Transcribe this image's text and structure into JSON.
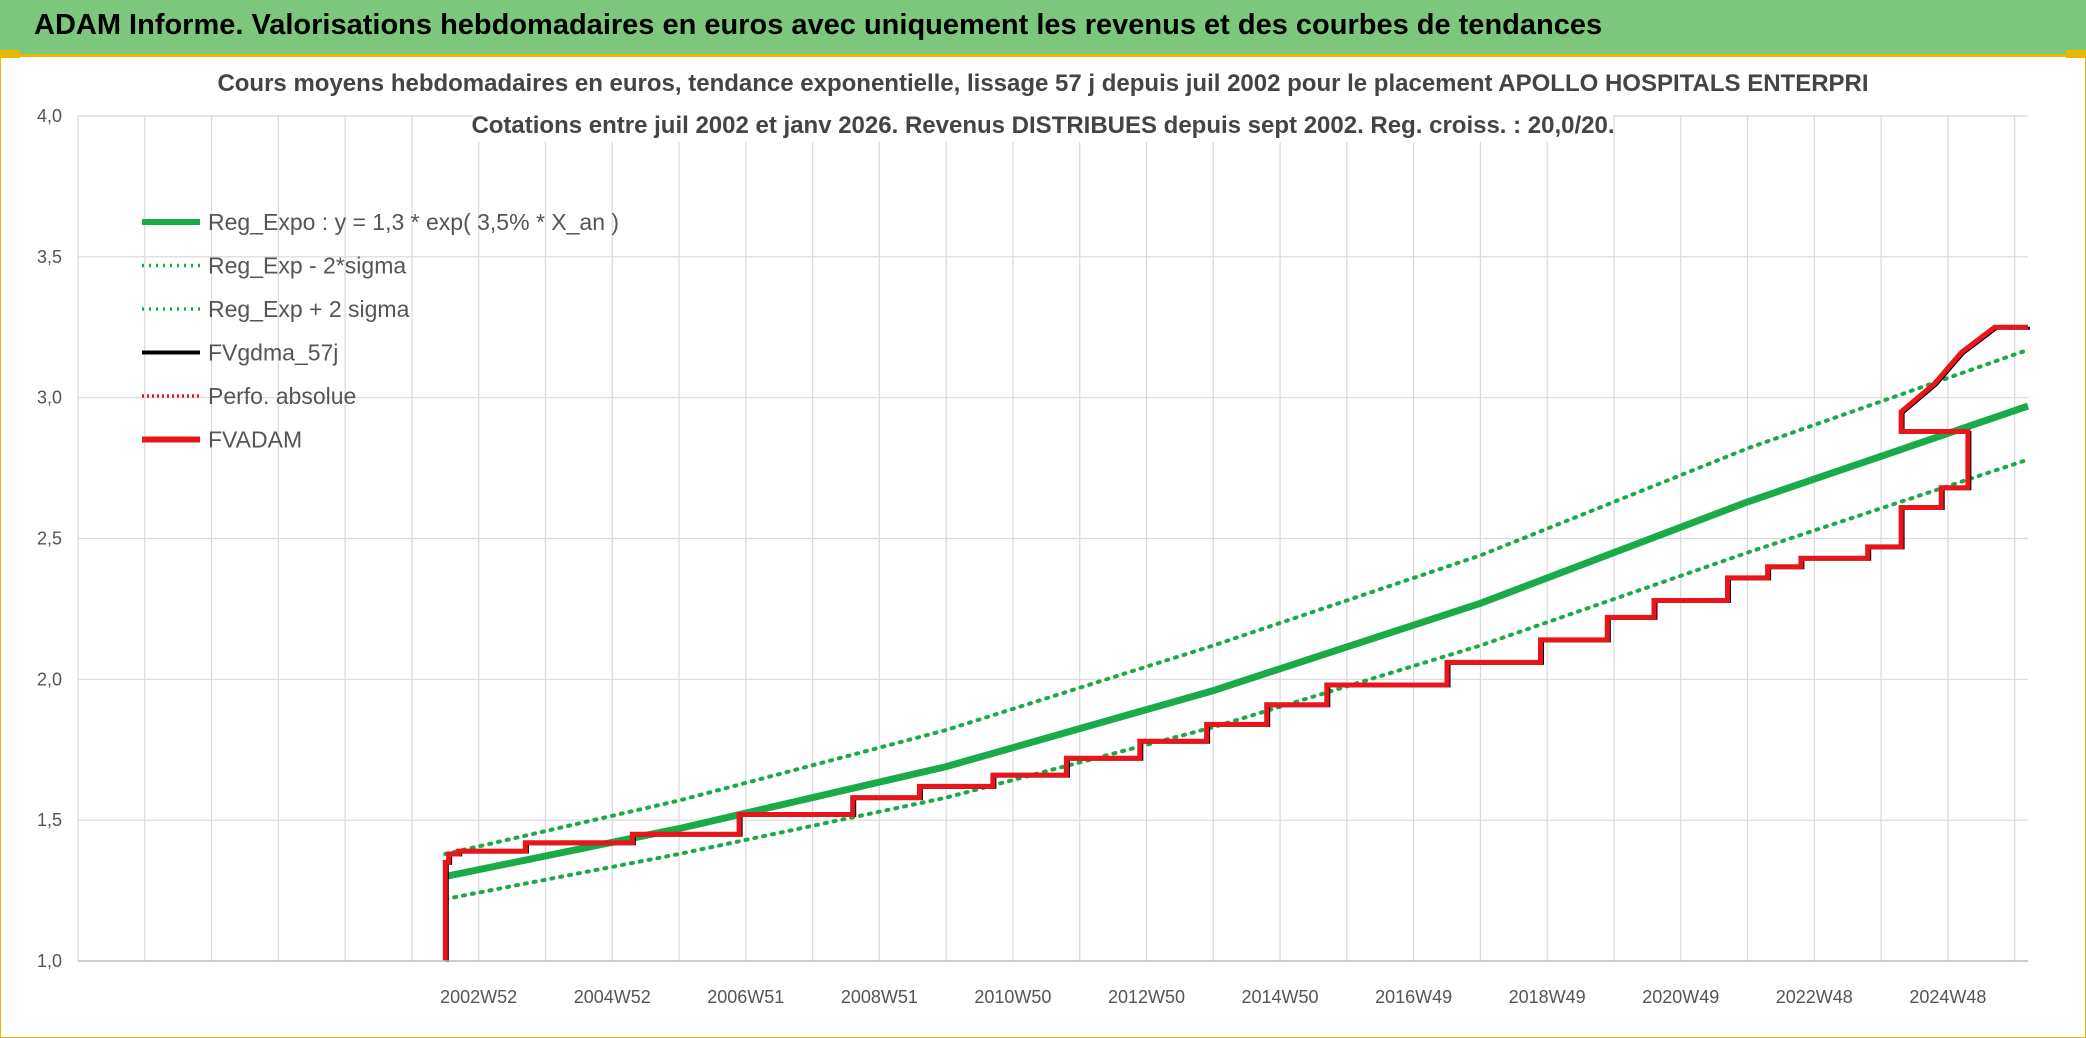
{
  "banner": {
    "title": "ADAM Informe. Valorisations hebdomadaires en euros avec uniquement les revenus et des courbes de tendances"
  },
  "colors": {
    "banner_bg": "#7dc77d",
    "banner_border": "#e9b800",
    "reg_green": "#1aaa48",
    "fvadam_red": "#e8161b",
    "fvgdma_black": "#000000",
    "grid": "#d9d9d9"
  },
  "chart_data": {
    "type": "line",
    "title": [
      "Cours moyens hebdomadaires en euros, tendance exponentielle, lissage 57 j depuis juil 2002 pour le placement APOLLO HOSPITALS ENTERPRI",
      "Cotations entre juil 2002  et janv 2026. Revenus DISTRIBUES depuis sept 2002. Reg. croiss. : 20,0/20."
    ],
    "ylim": [
      1.0,
      4.0
    ],
    "y_ticks": [
      "1,0",
      "1,5",
      "2,0",
      "2,5",
      "3,0",
      "3,5",
      "4,0"
    ],
    "y_tick_values": [
      1.0,
      1.5,
      2.0,
      2.5,
      3.0,
      3.5,
      4.0
    ],
    "xlim": [
      1997,
      2026.2
    ],
    "x_tick_labels": [
      "2002W52",
      "2004W52",
      "2006W51",
      "2008W51",
      "2010W50",
      "2012W50",
      "2014W50",
      "2016W49",
      "2018W49",
      "2020W49",
      "2022W48",
      "2024W48"
    ],
    "x_tick_values": [
      2003,
      2005,
      2007,
      2009,
      2011,
      2013,
      2015,
      2017,
      2019,
      2021,
      2023,
      2025
    ],
    "x_grid_step": 1,
    "grid": true,
    "legend_position": "top-left",
    "legend": [
      {
        "label": "Reg_Expo : y = 1,3 * exp( 3,5% *  X_an )",
        "style": "solid-thick",
        "color": "#1aaa48"
      },
      {
        "label": "Reg_Exp - 2*sigma",
        "style": "dotted",
        "color": "#1aaa48"
      },
      {
        "label": "Reg_Exp + 2 sigma",
        "style": "dotted",
        "color": "#1aaa48"
      },
      {
        "label": "FVgdma_57j",
        "style": "solid-thin",
        "color": "#000000"
      },
      {
        "label": "Perfo. absolue",
        "style": "dotted",
        "color": "#e8161b"
      },
      {
        "label": "FVADAM",
        "style": "solid-thick",
        "color": "#e8161b"
      }
    ],
    "regression": {
      "x": [
        2002.5,
        2006,
        2010,
        2014,
        2018,
        2022,
        2026.2
      ],
      "y": [
        1.3,
        1.47,
        1.69,
        1.96,
        2.27,
        2.63,
        2.97
      ],
      "upper": [
        1.38,
        1.57,
        1.82,
        2.12,
        2.44,
        2.82,
        3.17
      ],
      "lower": [
        1.22,
        1.38,
        1.58,
        1.83,
        2.12,
        2.45,
        2.78
      ]
    },
    "fvadam": {
      "x": [
        2002.5,
        2002.5,
        2002.55,
        2002.7,
        2003.7,
        2005.3,
        2006.9,
        2008.6,
        2009.6,
        2010.7,
        2011.8,
        2012.9,
        2013.9,
        2014.8,
        2015.7,
        2017.5,
        2018.9,
        2019.9,
        2020.6,
        2021.7,
        2022.3,
        2022.8,
        2023.8,
        2024.3,
        2024.9,
        2025.3
      ],
      "steps": [
        1.0,
        1.35,
        1.38,
        1.39,
        1.42,
        1.45,
        1.52,
        1.58,
        1.62,
        1.66,
        1.72,
        1.78,
        1.84,
        1.91,
        1.98,
        2.06,
        2.14,
        2.22,
        2.28,
        2.36,
        2.4,
        2.43,
        2.47,
        2.61,
        2.68,
        2.88
      ],
      "tail_x": [
        2024.3,
        2024.8,
        2025.2,
        2025.7,
        2026.2
      ],
      "tail_y": [
        2.95,
        3.05,
        3.16,
        3.25,
        3.25
      ]
    }
  }
}
